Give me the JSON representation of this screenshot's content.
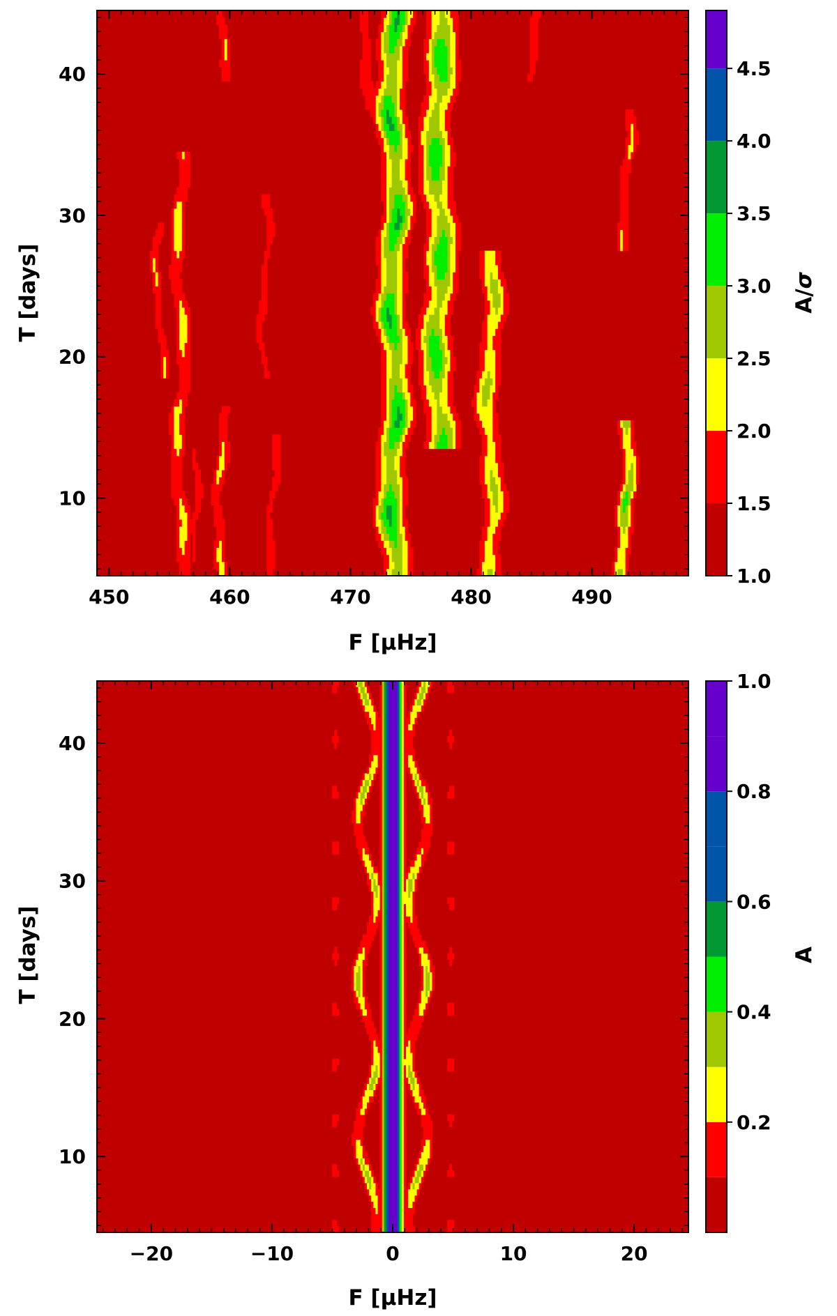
{
  "chart_data": [
    {
      "type": "heatmap",
      "xlabel": "F [μHz]",
      "ylabel": "T [days]",
      "xlim": [
        449,
        498
      ],
      "ylim": [
        4.5,
        44.5
      ],
      "x_ticks": [
        450,
        460,
        470,
        480,
        490
      ],
      "x_tick_labels": [
        "450",
        "460",
        "470",
        "480",
        "490"
      ],
      "y_ticks": [
        10,
        20,
        30,
        40
      ],
      "y_tick_labels": [
        "10",
        "20",
        "30",
        "40"
      ],
      "colorbar": {
        "label": "A/σ",
        "label_main": "A/",
        "label_sym": "σ",
        "levels": [
          1.0,
          1.5,
          2.0,
          2.5,
          3.0,
          3.5,
          4.0,
          4.5,
          4.9
        ],
        "colors": [
          "#c00000",
          "#ff0000",
          "#ffff00",
          "#a0c800",
          "#00ee00",
          "#009933",
          "#0055aa",
          "#6600cc"
        ],
        "ticks": [
          1.0,
          1.5,
          2.0,
          2.5,
          3.0,
          3.5,
          4.0,
          4.5
        ],
        "tick_labels": [
          "1.0",
          "1.5",
          "2.0",
          "2.5",
          "3.0",
          "3.5",
          "4.0",
          "4.5"
        ]
      },
      "ridges": [
        {
          "f": 473.6,
          "t": [
            4.5,
            44.5
          ],
          "level": 3.6,
          "width": 1.1
        },
        {
          "f": 477.3,
          "t": [
            14,
            44.5
          ],
          "level": 3.4,
          "width": 1.2
        },
        {
          "f": 481.6,
          "t": [
            5,
            27
          ],
          "level": 2.7,
          "width": 0.9
        },
        {
          "f": 455.9,
          "t": [
            4.5,
            34
          ],
          "level": 2.3,
          "width": 0.6
        },
        {
          "f": 459.3,
          "t": [
            4.5,
            16
          ],
          "level": 2.2,
          "width": 0.5
        },
        {
          "f": 492.8,
          "t": [
            4.5,
            15
          ],
          "level": 3.1,
          "width": 0.6
        },
        {
          "f": 492.9,
          "t": [
            28,
            37
          ],
          "level": 2.1,
          "width": 0.5
        },
        {
          "f": 454.2,
          "t": [
            19,
            29
          ],
          "level": 2.1,
          "width": 0.4
        },
        {
          "f": 462.9,
          "t": [
            19,
            31
          ],
          "level": 1.9,
          "width": 0.4
        },
        {
          "f": 459.4,
          "t": [
            40,
            44.5
          ],
          "level": 2.1,
          "width": 0.4
        },
        {
          "f": 471.5,
          "t": [
            38,
            44.5
          ],
          "level": 2.0,
          "width": 0.6
        },
        {
          "f": 485.2,
          "t": [
            40,
            44.5
          ],
          "level": 2.0,
          "width": 0.4
        },
        {
          "f": 463.6,
          "t": [
            4.5,
            14
          ],
          "level": 1.9,
          "width": 0.4
        },
        {
          "f": 457.0,
          "t": [
            6,
            14
          ],
          "level": 1.8,
          "width": 0.4
        }
      ]
    },
    {
      "type": "heatmap",
      "xlabel": "F [μHz]",
      "ylabel": "T [days]",
      "xlim": [
        -24.5,
        24.5
      ],
      "ylim": [
        4.5,
        44.5
      ],
      "x_ticks": [
        -20,
        -10,
        0,
        10,
        20
      ],
      "x_tick_labels": [
        "−20",
        "−10",
        "0",
        "10",
        "20"
      ],
      "y_ticks": [
        10,
        20,
        30,
        40
      ],
      "y_tick_labels": [
        "10",
        "20",
        "30",
        "40"
      ],
      "colorbar": {
        "label": "A",
        "levels": [
          0.0,
          0.1,
          0.2,
          0.3,
          0.4,
          0.5,
          0.6,
          0.7,
          0.8,
          0.9,
          1.0
        ],
        "colors": [
          "#c00000",
          "#ff0000",
          "#ffff00",
          "#a0c800",
          "#00ee00",
          "#009933",
          "#0055aa",
          "#0055aa",
          "#6600cc",
          "#6600cc"
        ],
        "ticks": [
          0.2,
          0.4,
          0.6,
          0.8,
          1.0
        ],
        "tick_labels": [
          "0.2",
          "0.4",
          "0.6",
          "0.8",
          "1.0"
        ]
      },
      "window_function": {
        "center": 0,
        "central_amplitude": 1.0,
        "side_lobe_amplitude": 0.3
      }
    }
  ]
}
